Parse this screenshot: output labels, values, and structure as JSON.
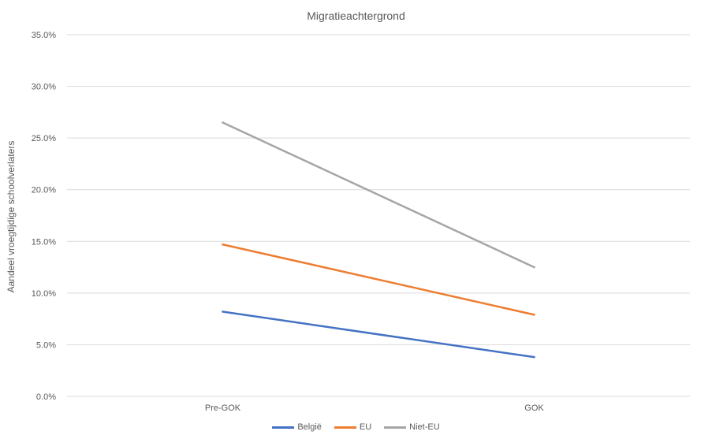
{
  "chart_data": {
    "type": "line",
    "title": "Migratieachtergrond",
    "xlabel": "",
    "ylabel": "Aandeel vroegtijdige schoolverlaters",
    "categories": [
      "Pre-GOK",
      "GOK"
    ],
    "ylim": [
      0,
      35
    ],
    "yticks": [
      "0.0%",
      "5.0%",
      "10.0%",
      "15.0%",
      "20.0%",
      "25.0%",
      "30.0%",
      "35.0%"
    ],
    "grid": true,
    "legend_position": "bottom",
    "series": [
      {
        "name": "België",
        "values": [
          8.2,
          3.8
        ],
        "color": "#4472C4"
      },
      {
        "name": "EU",
        "values": [
          14.7,
          7.9
        ],
        "color": "#ED7D31"
      },
      {
        "name": "Niet-EU",
        "values": [
          26.5,
          12.5
        ],
        "color": "#A5A5A5"
      }
    ]
  }
}
